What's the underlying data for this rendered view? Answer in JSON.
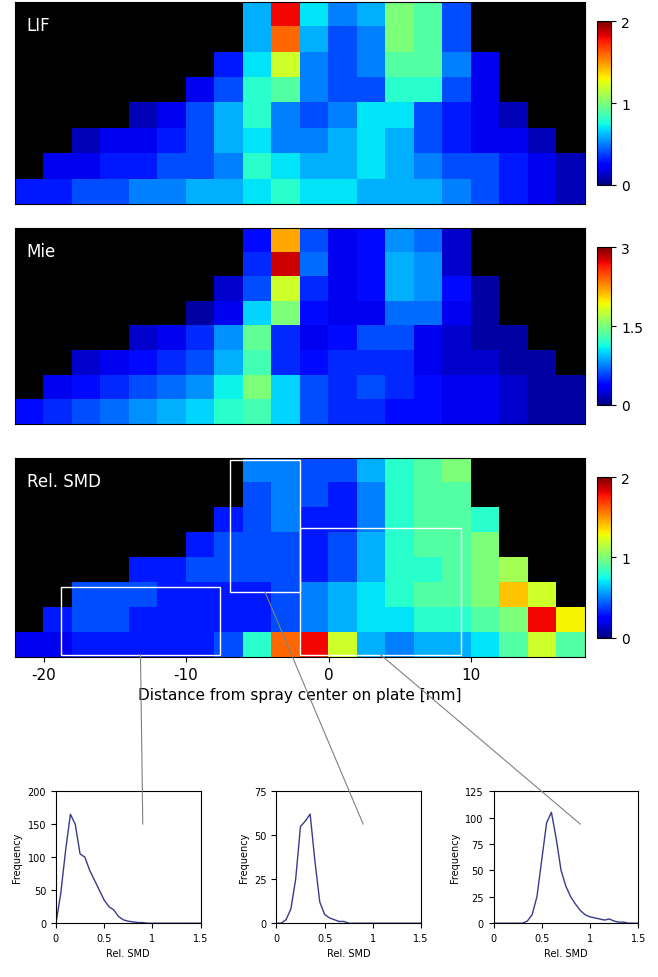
{
  "chart_data": [
    {
      "type": "heatmap",
      "title": "LIF",
      "xlim": [
        -22,
        18
      ],
      "tick_labels": false,
      "colorbar": {
        "range": [
          0,
          2
        ],
        "ticks": [
          0,
          1,
          2
        ]
      },
      "cells": [
        [
          null,
          null,
          null,
          null,
          null,
          null,
          null,
          null,
          0.6,
          1.8,
          0.7,
          0.5,
          0.6,
          1.0,
          0.9,
          0.4,
          null,
          null,
          null,
          null
        ],
        [
          null,
          null,
          null,
          null,
          null,
          null,
          null,
          null,
          0.6,
          1.6,
          0.6,
          0.4,
          0.5,
          1.0,
          0.9,
          0.4,
          null,
          null,
          null,
          null
        ],
        [
          null,
          null,
          null,
          null,
          null,
          null,
          null,
          0.3,
          0.7,
          1.2,
          0.5,
          0.4,
          0.5,
          0.9,
          0.9,
          0.5,
          0.2,
          null,
          null,
          null
        ],
        [
          null,
          null,
          null,
          null,
          null,
          null,
          0.2,
          0.4,
          0.8,
          0.9,
          0.5,
          0.4,
          0.4,
          0.8,
          0.8,
          0.4,
          0.2,
          null,
          null,
          null
        ],
        [
          null,
          null,
          null,
          null,
          0.1,
          0.2,
          0.4,
          0.6,
          0.8,
          0.5,
          0.4,
          0.5,
          0.7,
          0.7,
          0.4,
          0.3,
          0.2,
          0.1,
          null,
          null
        ],
        [
          null,
          null,
          0.1,
          0.2,
          0.2,
          0.3,
          0.4,
          0.6,
          0.7,
          0.5,
          0.5,
          0.6,
          0.7,
          0.6,
          0.4,
          0.3,
          0.2,
          0.2,
          0.1,
          null
        ],
        [
          null,
          0.2,
          0.2,
          0.3,
          0.3,
          0.4,
          0.4,
          0.5,
          0.8,
          0.7,
          0.6,
          0.6,
          0.7,
          0.6,
          0.5,
          0.4,
          0.4,
          0.3,
          0.2,
          0.1
        ],
        [
          0.3,
          0.3,
          0.4,
          0.4,
          0.5,
          0.5,
          0.6,
          0.6,
          0.7,
          0.8,
          0.7,
          0.7,
          0.6,
          0.6,
          0.6,
          0.5,
          0.4,
          0.3,
          0.2,
          0.1
        ]
      ]
    },
    {
      "type": "heatmap",
      "title": "Mie",
      "xlim": [
        -22,
        18
      ],
      "tick_labels": false,
      "colorbar": {
        "range": [
          0,
          3
        ],
        "ticks": [
          0,
          1.5,
          3
        ]
      },
      "cells": [
        [
          null,
          null,
          null,
          null,
          null,
          null,
          null,
          null,
          0.4,
          2.2,
          0.6,
          0.3,
          0.4,
          0.8,
          0.7,
          0.2,
          null,
          null,
          null,
          null
        ],
        [
          null,
          null,
          null,
          null,
          null,
          null,
          null,
          null,
          0.5,
          2.8,
          0.7,
          0.3,
          0.4,
          0.9,
          0.8,
          0.2,
          null,
          null,
          null,
          null
        ],
        [
          null,
          null,
          null,
          null,
          null,
          null,
          null,
          0.2,
          0.6,
          1.8,
          0.5,
          0.3,
          0.4,
          0.9,
          0.8,
          0.4,
          0.1,
          null,
          null,
          null
        ],
        [
          null,
          null,
          null,
          null,
          null,
          null,
          0.1,
          0.3,
          1.0,
          1.5,
          0.4,
          0.3,
          0.3,
          0.7,
          0.7,
          0.3,
          0.1,
          null,
          null,
          null
        ],
        [
          null,
          null,
          null,
          null,
          0.2,
          0.3,
          0.5,
          0.8,
          1.4,
          0.5,
          0.3,
          0.4,
          0.6,
          0.6,
          0.3,
          0.2,
          0.1,
          0.1,
          null,
          null
        ],
        [
          null,
          null,
          0.2,
          0.3,
          0.4,
          0.5,
          0.6,
          0.9,
          1.3,
          0.5,
          0.4,
          0.5,
          0.5,
          0.5,
          0.3,
          0.2,
          0.2,
          0.1,
          0.1,
          null
        ],
        [
          null,
          0.3,
          0.4,
          0.5,
          0.6,
          0.7,
          0.8,
          1.1,
          1.5,
          1.0,
          0.6,
          0.5,
          0.6,
          0.5,
          0.4,
          0.3,
          0.3,
          0.2,
          0.1,
          0.1
        ],
        [
          0.4,
          0.5,
          0.6,
          0.7,
          0.8,
          0.9,
          1.0,
          1.2,
          1.3,
          1.0,
          0.6,
          0.5,
          0.5,
          0.4,
          0.4,
          0.3,
          0.3,
          0.2,
          0.1,
          0.1
        ]
      ]
    },
    {
      "type": "heatmap",
      "title": "Rel. SMD",
      "xlim": [
        -22,
        18
      ],
      "xticks": [
        -20,
        -10,
        0,
        10
      ],
      "tick_labels": "x",
      "x_label": "Distance from spray center on plate [mm]",
      "colorbar": {
        "range": [
          0,
          2
        ],
        "ticks": [
          0,
          1,
          2
        ]
      },
      "regions": [
        {
          "x": [
            -18.8,
            -7.6
          ],
          "rows": [
            5.2,
            7.9
          ]
        },
        {
          "x": [
            -6.9,
            -2.0
          ],
          "rows": [
            0.1,
            5.4
          ]
        },
        {
          "x": [
            -2.0,
            9.3
          ],
          "rows": [
            2.8,
            7.9
          ]
        }
      ],
      "cells": [
        [
          null,
          null,
          null,
          null,
          null,
          null,
          null,
          null,
          0.5,
          0.5,
          0.4,
          0.4,
          0.6,
          0.8,
          0.9,
          1.0,
          null,
          null,
          null,
          null
        ],
        [
          null,
          null,
          null,
          null,
          null,
          null,
          null,
          null,
          0.4,
          0.5,
          0.4,
          0.3,
          0.5,
          0.8,
          0.9,
          0.9,
          null,
          null,
          null,
          null
        ],
        [
          null,
          null,
          null,
          null,
          null,
          null,
          null,
          0.3,
          0.4,
          0.5,
          0.3,
          0.3,
          0.5,
          0.8,
          0.9,
          0.9,
          0.8,
          null,
          null,
          null
        ],
        [
          null,
          null,
          null,
          null,
          null,
          null,
          0.3,
          0.4,
          0.4,
          0.4,
          0.3,
          0.4,
          0.6,
          0.8,
          0.9,
          0.9,
          1.0,
          null,
          null,
          null
        ],
        [
          null,
          null,
          null,
          null,
          0.3,
          0.3,
          0.4,
          0.4,
          0.4,
          0.4,
          0.3,
          0.4,
          0.6,
          0.8,
          0.8,
          0.9,
          1.0,
          1.1,
          null,
          null
        ],
        [
          null,
          null,
          0.4,
          0.4,
          0.4,
          0.3,
          0.3,
          0.3,
          0.3,
          0.4,
          0.5,
          0.6,
          0.7,
          0.8,
          0.9,
          0.9,
          1.0,
          1.4,
          1.2,
          null
        ],
        [
          null,
          0.3,
          0.4,
          0.4,
          0.3,
          0.3,
          0.3,
          0.3,
          0.3,
          0.4,
          0.5,
          0.6,
          0.7,
          0.7,
          0.8,
          0.8,
          0.9,
          1.0,
          1.8,
          1.3
        ],
        [
          0.2,
          0.2,
          0.3,
          0.3,
          0.3,
          0.3,
          0.3,
          0.4,
          0.8,
          1.6,
          1.8,
          1.2,
          0.6,
          0.5,
          0.6,
          0.6,
          0.7,
          0.9,
          1.2,
          0.9
        ]
      ]
    },
    {
      "type": "line",
      "x_label": "Rel. SMD",
      "y_label": "Frequency",
      "color": "#3a3a8c",
      "xlim": [
        0,
        1.5
      ],
      "xticks": [
        0,
        0.5,
        1,
        1.5
      ],
      "ylim": [
        0,
        200
      ],
      "yticks": [
        0,
        50,
        100,
        150,
        200
      ],
      "x": [
        0,
        0.05,
        0.1,
        0.15,
        0.2,
        0.25,
        0.3,
        0.35,
        0.4,
        0.45,
        0.5,
        0.55,
        0.6,
        0.65,
        0.7,
        0.75,
        0.8,
        0.85,
        0.9,
        0.95,
        1.0,
        1.05,
        1.1,
        1.15,
        1.2,
        1.25,
        1.3,
        1.35,
        1.4,
        1.45,
        1.5
      ],
      "values": [
        0,
        45,
        110,
        165,
        150,
        105,
        100,
        80,
        65,
        50,
        35,
        25,
        20,
        10,
        5,
        3,
        2,
        1,
        1,
        0,
        0,
        0,
        0,
        0,
        0,
        0,
        0,
        0,
        0,
        0,
        0
      ]
    },
    {
      "type": "line",
      "x_label": "Rel. SMD",
      "y_label": "Frequency",
      "color": "#3a3a8c",
      "xlim": [
        0,
        1.5
      ],
      "xticks": [
        0,
        0.5,
        1,
        1.5
      ],
      "ylim": [
        0,
        75
      ],
      "yticks": [
        0,
        25,
        50,
        75
      ],
      "x": [
        0,
        0.05,
        0.1,
        0.15,
        0.2,
        0.25,
        0.3,
        0.35,
        0.4,
        0.45,
        0.5,
        0.55,
        0.6,
        0.65,
        0.7,
        0.75,
        0.8,
        0.85,
        0.9,
        0.95,
        1.0,
        1.05,
        1.1,
        1.15,
        1.2,
        1.25,
        1.3,
        1.35,
        1.4,
        1.45,
        1.5
      ],
      "values": [
        0,
        0,
        2,
        8,
        25,
        55,
        58,
        62,
        35,
        12,
        5,
        3,
        2,
        1,
        1,
        0,
        0,
        0,
        0,
        0,
        0,
        0,
        0,
        0,
        0,
        0,
        0,
        0,
        0,
        0,
        0
      ]
    },
    {
      "type": "line",
      "x_label": "Rel. SMD",
      "y_label": "Frequency",
      "color": "#3a3a8c",
      "xlim": [
        0,
        1.5
      ],
      "xticks": [
        0,
        0.5,
        1,
        1.5
      ],
      "ylim": [
        0,
        125
      ],
      "yticks": [
        0,
        25,
        50,
        75,
        100,
        125
      ],
      "x": [
        0,
        0.05,
        0.1,
        0.15,
        0.2,
        0.25,
        0.3,
        0.35,
        0.4,
        0.45,
        0.5,
        0.55,
        0.6,
        0.65,
        0.7,
        0.75,
        0.8,
        0.85,
        0.9,
        0.95,
        1.0,
        1.05,
        1.1,
        1.15,
        1.2,
        1.25,
        1.3,
        1.35,
        1.4,
        1.45,
        1.5
      ],
      "values": [
        0,
        0,
        0,
        0,
        0,
        0,
        0,
        2,
        8,
        25,
        60,
        95,
        105,
        80,
        50,
        35,
        25,
        18,
        12,
        8,
        6,
        5,
        4,
        3,
        4,
        2,
        1,
        1,
        0,
        0,
        0
      ]
    }
  ]
}
